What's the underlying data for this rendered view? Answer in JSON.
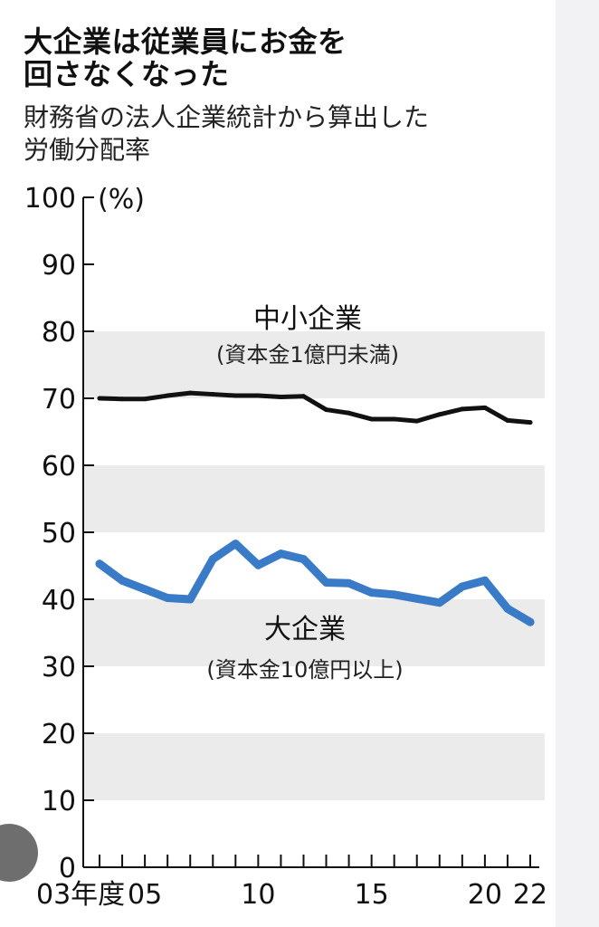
{
  "title_line1": "大企業は従業員にお金を",
  "title_line2": "回さなくなった",
  "subtitle_line1": "財務省の法人企業統計から算出した",
  "subtitle_line2": "労働分配率",
  "colors": {
    "small": "#111111",
    "large": "#3a7bc8",
    "band": "#ebebeb"
  },
  "chart_data": {
    "type": "line",
    "ylabel": "(%)",
    "ylim": [
      0,
      100
    ],
    "yticks": [
      0,
      10,
      20,
      30,
      40,
      50,
      60,
      70,
      80,
      90,
      100
    ],
    "x": [
      2003,
      2004,
      2005,
      2006,
      2007,
      2008,
      2009,
      2010,
      2011,
      2012,
      2013,
      2014,
      2015,
      2016,
      2017,
      2018,
      2019,
      2020,
      2021,
      2022
    ],
    "xticks": [
      {
        "x": 2003,
        "label": "03年度"
      },
      {
        "x": 2005,
        "label": "05"
      },
      {
        "x": 2010,
        "label": "10"
      },
      {
        "x": 2015,
        "label": "15"
      },
      {
        "x": 2020,
        "label": "20"
      },
      {
        "x": 2022,
        "label": "22"
      }
    ],
    "series": [
      {
        "name": "中小企業",
        "sublabel": "(資本金1億円未満)",
        "values": [
          70.0,
          69.9,
          69.9,
          70.4,
          70.8,
          70.6,
          70.4,
          70.4,
          70.2,
          70.3,
          68.3,
          67.8,
          66.9,
          66.9,
          66.6,
          67.6,
          68.4,
          68.6,
          66.7,
          66.4
        ]
      },
      {
        "name": "大企業",
        "sublabel": "(資本金10億円以上)",
        "values": [
          45.3,
          42.8,
          41.5,
          40.2,
          40.0,
          46.0,
          48.3,
          45.1,
          46.8,
          46.0,
          42.5,
          42.4,
          41.0,
          40.7,
          40.1,
          39.5,
          41.9,
          42.8,
          38.6,
          36.6
        ]
      }
    ]
  }
}
